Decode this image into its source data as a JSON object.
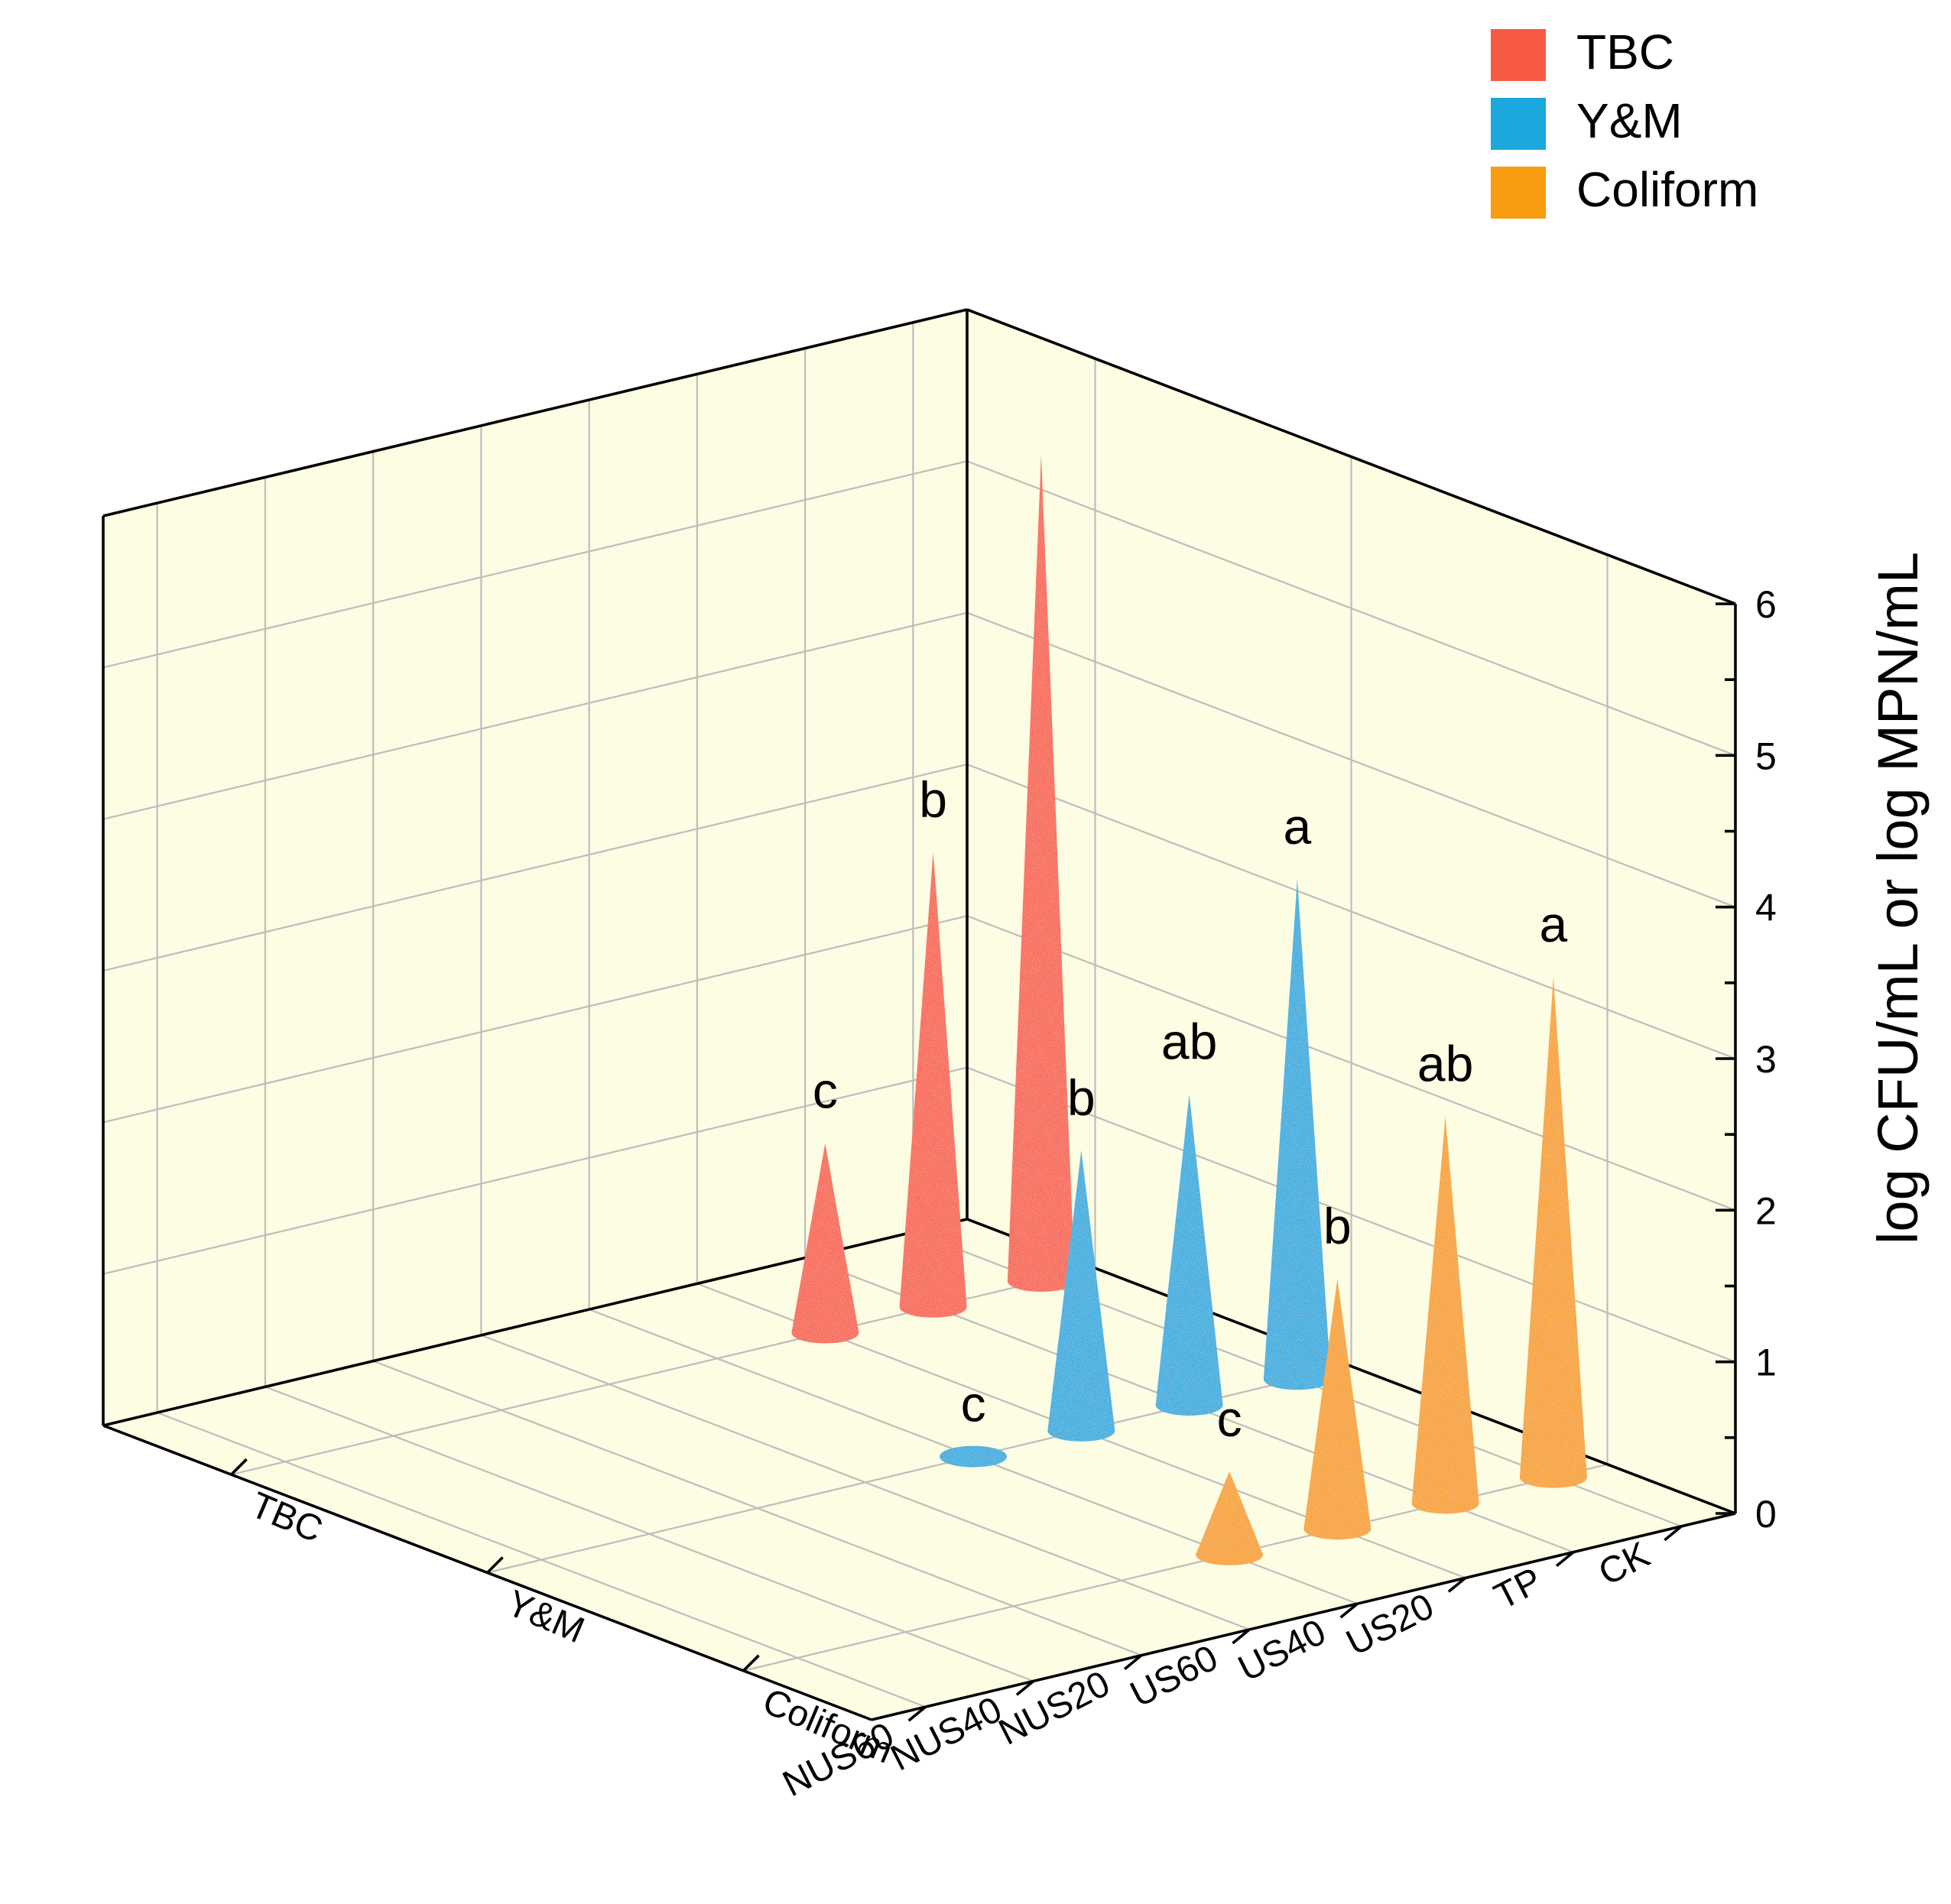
{
  "chart_data": {
    "type": "3d-cone",
    "x_categories": [
      "CK",
      "TP",
      "US20",
      "US40",
      "US60",
      "NUS20",
      "NUS40",
      "NUS60"
    ],
    "y_categories": [
      "TBC",
      "Y&M",
      "Coliform"
    ],
    "zlabel": "log CFU/mL or log MPN/mL",
    "zlim": [
      0,
      6
    ],
    "z_ticks": [
      "0",
      "1",
      "2",
      "3",
      "4",
      "5",
      "6"
    ],
    "legend": {
      "placement": "top-right",
      "items": [
        {
          "name": "TBC",
          "color": "#f75a43"
        },
        {
          "name": "Y&M",
          "color": "#1aa8dd"
        },
        {
          "name": "Coliform",
          "color": "#f79c0e"
        }
      ]
    },
    "series": [
      {
        "name": "TBC",
        "color": "#f75a43",
        "points": [
          {
            "x": "CK",
            "value": 5.45,
            "label": ""
          },
          {
            "x": "TP",
            "value": 3.0,
            "label": "b"
          },
          {
            "x": "US20",
            "value": 1.25,
            "label": "c"
          }
        ]
      },
      {
        "name": "Y&M",
        "color": "#1aa8dd",
        "points": [
          {
            "x": "CK",
            "value": 3.3,
            "label": "a"
          },
          {
            "x": "TP",
            "value": 2.05,
            "label": "ab"
          },
          {
            "x": "US20",
            "value": 1.85,
            "label": "b"
          },
          {
            "x": "US40",
            "value": 0.0,
            "label": "c"
          }
        ]
      },
      {
        "name": "Coliform",
        "color": "#f79c0e",
        "points": [
          {
            "x": "CK",
            "value": 3.3,
            "label": "a"
          },
          {
            "x": "TP",
            "value": 2.55,
            "label": "ab"
          },
          {
            "x": "US20",
            "value": 1.65,
            "label": "b"
          },
          {
            "x": "US40",
            "value": 0.55,
            "label": "c"
          }
        ]
      }
    ]
  }
}
